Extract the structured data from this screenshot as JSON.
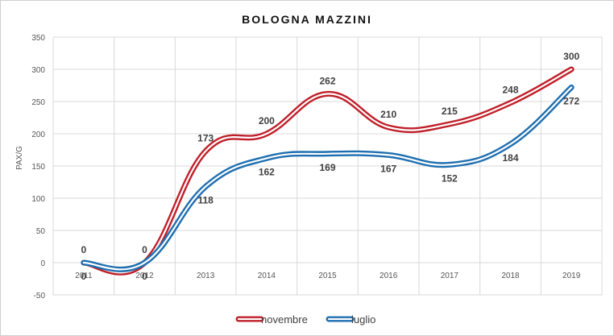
{
  "chart_data": {
    "type": "line",
    "title": "BOLOGNA MAZZINI",
    "xlabel": "",
    "ylabel": "PAX/G",
    "categories": [
      "2011",
      "2012",
      "2013",
      "2014",
      "2015",
      "2016",
      "2017",
      "2018",
      "2019"
    ],
    "yticks": [
      "-50",
      "0",
      "50",
      "100",
      "150",
      "200",
      "250",
      "300",
      "350"
    ],
    "ylim": [
      -50,
      350
    ],
    "grid": true,
    "legend_position": "bottom",
    "series": [
      {
        "name": "novembre",
        "color": "#c0202a",
        "values": [
          0,
          0,
          173,
          200,
          262,
          210,
          215,
          248,
          300
        ],
        "labels": [
          "0",
          "0",
          "173",
          "200",
          "262",
          "210",
          "215",
          "248",
          "300"
        ]
      },
      {
        "name": "luglio",
        "color": "#1f6fb0",
        "values": [
          0,
          0,
          118,
          162,
          169,
          167,
          152,
          184,
          272
        ],
        "labels": [
          "0",
          "0",
          "118",
          "162",
          "169",
          "167",
          "152",
          "184",
          "272"
        ]
      }
    ]
  }
}
